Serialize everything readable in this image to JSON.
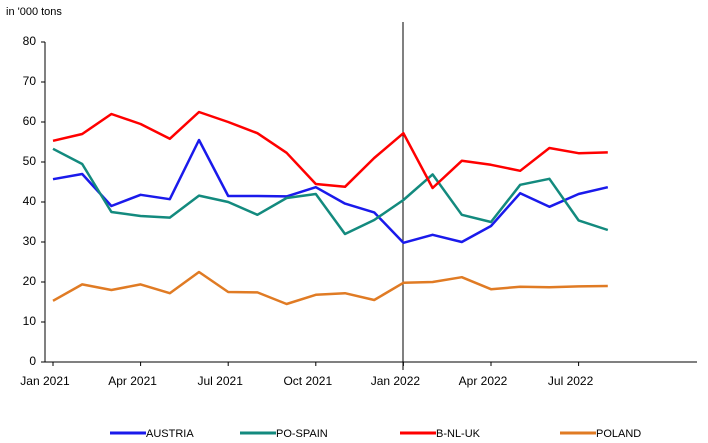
{
  "chart_data": {
    "type": "line",
    "y_label": "in '000 tons",
    "categories": [
      "Jan 2021",
      null,
      null,
      "Apr 2021",
      null,
      null,
      "Jul 2021",
      null,
      null,
      "Oct 2021",
      null,
      null,
      "Jan 2022",
      null,
      null,
      "Apr 2022",
      null,
      null,
      "Jul 2022",
      null
    ],
    "series": [
      {
        "name": "AUSTRIA",
        "color": "#1a1aeb",
        "values": [
          45.7,
          47,
          39,
          41.8,
          40.7,
          55.5,
          41.5,
          41.5,
          41.4,
          43.7,
          39.6,
          37.4,
          29.8,
          31.8,
          30,
          34,
          42.2,
          38.8,
          42,
          43.7
        ]
      },
      {
        "name": "PO-SPAIN",
        "color": "#138a7e",
        "values": [
          53.3,
          49.5,
          37.5,
          36.5,
          36.1,
          41.6,
          40,
          36.8,
          41,
          42,
          32,
          35.5,
          40.5,
          46.9,
          36.8,
          35,
          44.3,
          45.8,
          35.4,
          33
        ]
      },
      {
        "name": "B-NL-UK",
        "color": "#ff0000",
        "values": [
          55.3,
          57,
          62,
          59.5,
          55.8,
          62.5,
          60,
          57.2,
          52.3,
          44.5,
          43.8,
          51,
          57.2,
          43.5,
          50.3,
          49.3,
          47.8,
          53.5,
          52.2,
          52.4
        ]
      },
      {
        "name": "POLAND",
        "color": "#e07b24",
        "values": [
          15.3,
          19.4,
          18,
          19.4,
          17.2,
          22.5,
          17.5,
          17.4,
          14.5,
          16.8,
          17.2,
          15.5,
          19.8,
          20,
          21.2,
          18.2,
          18.8,
          18.7,
          18.9,
          19
        ]
      }
    ],
    "ylim": [
      0,
      80
    ],
    "yticks": [
      0,
      10,
      20,
      30,
      40,
      50,
      60,
      70,
      80
    ],
    "grid": false,
    "legend": "bottom"
  }
}
